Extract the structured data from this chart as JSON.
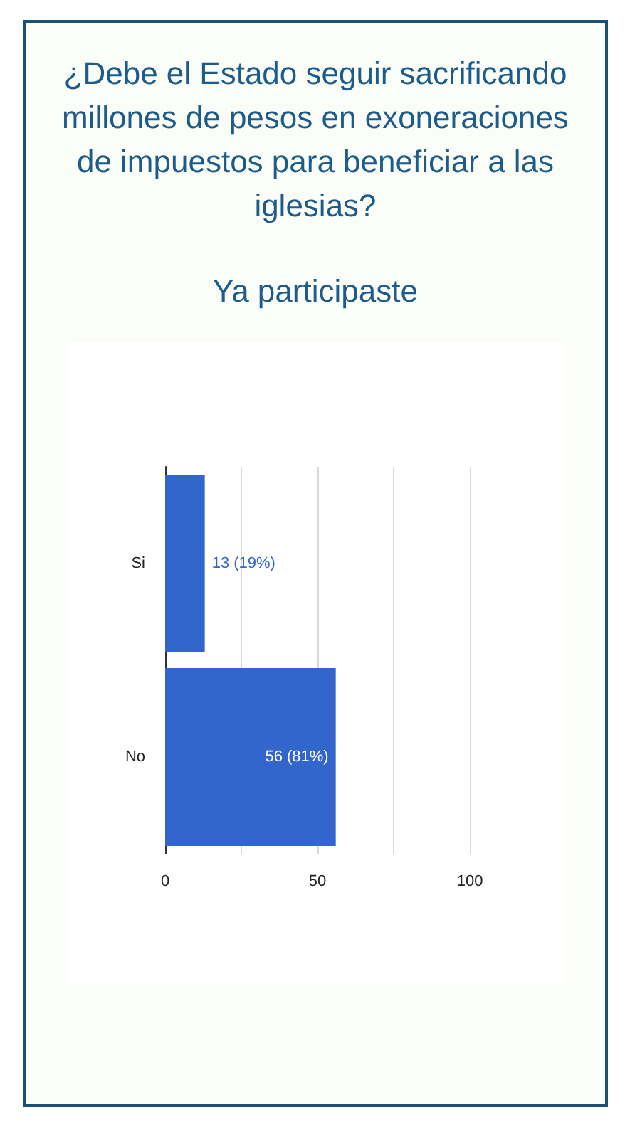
{
  "chart_data": {
    "type": "bar",
    "orientation": "horizontal",
    "title": "¿Debe el Estado seguir sacrificando millones de pesos en exoneraciones de impuestos para beneficiar a las iglesias?",
    "subtitle": "Ya participaste",
    "categories": [
      "Si",
      "No"
    ],
    "values": [
      13,
      56
    ],
    "color": "#3366cc",
    "value_labels": [
      "13 (19%)",
      "56 (81%)"
    ],
    "xlim": [
      0,
      100
    ],
    "xticks": [
      0,
      {
        "value": 25,
        "label": null
      },
      50,
      {
        "value": 75,
        "label": null
      },
      100
    ],
    "grid": "x"
  }
}
